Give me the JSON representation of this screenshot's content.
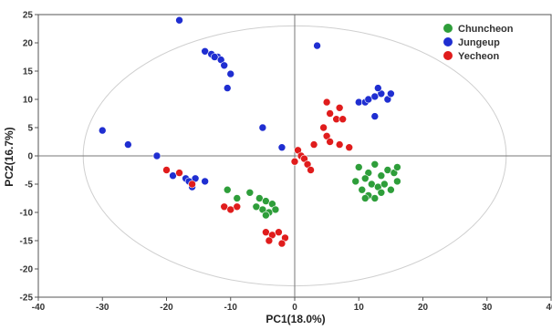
{
  "chart_data": {
    "type": "scatter",
    "xlabel": "PC1(18.0%)",
    "ylabel": "PC2(16.7%)",
    "xlim": [
      -40,
      40
    ],
    "ylim": [
      -25,
      25
    ],
    "xticks": [
      -40,
      -30,
      -20,
      -10,
      0,
      10,
      20,
      30,
      40
    ],
    "yticks": [
      25,
      20,
      15,
      10,
      5,
      0,
      -5,
      -10,
      -15,
      -20,
      -25
    ],
    "grid": false,
    "legend_position": "top-right",
    "confidence_ellipse": {
      "cx": 0,
      "cy": 0,
      "rx": 33,
      "ry": 23
    },
    "series": [
      {
        "name": "Chuncheon",
        "color": "#2e9e3a",
        "points": [
          [
            10,
            -2
          ],
          [
            11.5,
            -3
          ],
          [
            12.5,
            -1.5
          ],
          [
            13.5,
            -3.5
          ],
          [
            14.5,
            -2.5
          ],
          [
            15.5,
            -3
          ],
          [
            16,
            -2
          ],
          [
            16,
            -4.5
          ],
          [
            11,
            -4
          ],
          [
            12,
            -5
          ],
          [
            13,
            -5.5
          ],
          [
            14,
            -5
          ],
          [
            15,
            -6
          ],
          [
            10.5,
            -6
          ],
          [
            11.5,
            -7
          ],
          [
            12.5,
            -7.5
          ],
          [
            11,
            -7.5
          ],
          [
            13.5,
            -6.5
          ],
          [
            9.5,
            -4.5
          ],
          [
            -9,
            -7.5
          ],
          [
            -7,
            -6.5
          ],
          [
            -5.5,
            -7.5
          ],
          [
            -4.5,
            -8
          ],
          [
            -3.5,
            -8.5
          ],
          [
            -4,
            -10
          ],
          [
            -5,
            -9.5
          ],
          [
            -6,
            -9
          ],
          [
            -3,
            -9.5
          ],
          [
            -4.5,
            -10.5
          ],
          [
            -10.5,
            -6
          ]
        ]
      },
      {
        "name": "Jungeup",
        "color": "#1f2ed1",
        "points": [
          [
            -18,
            24
          ],
          [
            3.5,
            19.5
          ],
          [
            -14,
            18.5
          ],
          [
            -13,
            18
          ],
          [
            -12,
            17.5
          ],
          [
            -11.5,
            17
          ],
          [
            -12.5,
            17.5
          ],
          [
            -11,
            16
          ],
          [
            -10,
            14.5
          ],
          [
            -10.5,
            12
          ],
          [
            -30,
            4.5
          ],
          [
            -26,
            2
          ],
          [
            -21.5,
            0
          ],
          [
            -5,
            5
          ],
          [
            -2,
            1.5
          ],
          [
            -19,
            -3.5
          ],
          [
            -17,
            -4
          ],
          [
            -16.5,
            -4.5
          ],
          [
            -16,
            -5.5
          ],
          [
            -15.5,
            -4
          ],
          [
            -14,
            -4.5
          ],
          [
            10,
            9.5
          ],
          [
            11,
            9.5
          ],
          [
            11.5,
            10
          ],
          [
            12.5,
            10.5
          ],
          [
            13.5,
            11
          ],
          [
            14.5,
            10
          ],
          [
            13,
            12
          ],
          [
            15,
            11
          ],
          [
            12.5,
            7
          ]
        ]
      },
      {
        "name": "Yecheon",
        "color": "#e01c1c",
        "points": [
          [
            5,
            9.5
          ],
          [
            7,
            8.5
          ],
          [
            5.5,
            7.5
          ],
          [
            6.5,
            6.5
          ],
          [
            7.5,
            6.5
          ],
          [
            4.5,
            5
          ],
          [
            5,
            3.5
          ],
          [
            3,
            2
          ],
          [
            5.5,
            2.5
          ],
          [
            7,
            2
          ],
          [
            8.5,
            1.5
          ],
          [
            0.5,
            1
          ],
          [
            1,
            0
          ],
          [
            1.5,
            -0.5
          ],
          [
            2,
            -1.5
          ],
          [
            2.5,
            -2.5
          ],
          [
            0,
            -1
          ],
          [
            -20,
            -2.5
          ],
          [
            -18,
            -3
          ],
          [
            -16,
            -5
          ],
          [
            -11,
            -9
          ],
          [
            -10,
            -9.5
          ],
          [
            -9,
            -9
          ],
          [
            -4.5,
            -13.5
          ],
          [
            -3.5,
            -14
          ],
          [
            -2.5,
            -13.5
          ],
          [
            -1.5,
            -14.5
          ],
          [
            -4,
            -15
          ],
          [
            -2,
            -15.5
          ]
        ]
      }
    ]
  }
}
